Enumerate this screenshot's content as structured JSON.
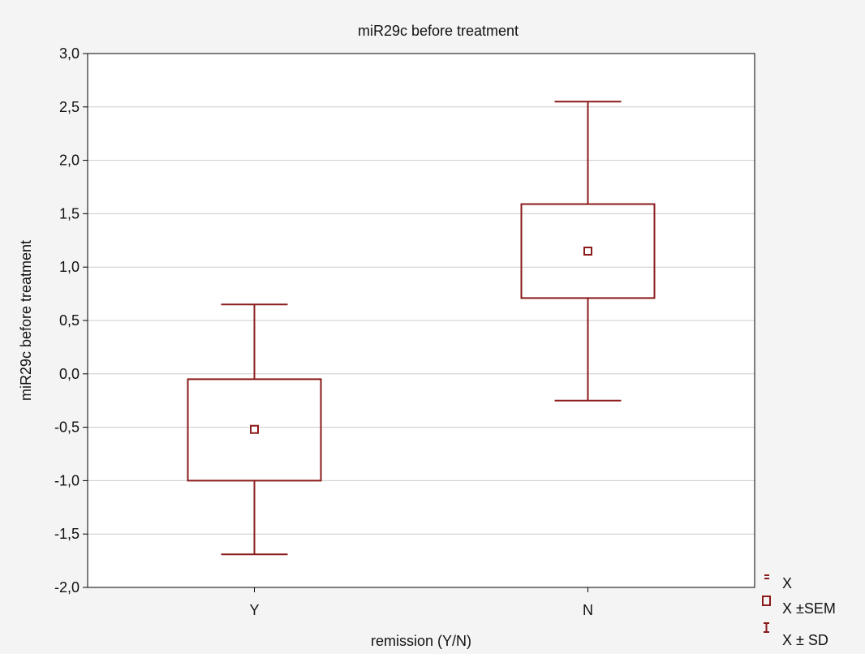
{
  "chart_data": {
    "type": "box",
    "title": "miR29c before treatment",
    "xlabel": "remission (Y/N)",
    "ylabel": "miR29c before treatment",
    "ylim": [
      -2.0,
      3.0
    ],
    "yticks": [
      -2.0,
      -1.5,
      -1.0,
      -0.5,
      0.0,
      0.5,
      1.0,
      1.5,
      2.0,
      2.5,
      3.0
    ],
    "ytick_labels": [
      "-2,0",
      "-1,5",
      "-1,0",
      "-0,5",
      "0,0",
      "0,5",
      "1,0",
      "1,5",
      "2,0",
      "2,5",
      "3,0"
    ],
    "grid": true,
    "categories": [
      "Y",
      "N"
    ],
    "groups": [
      {
        "category": "Y",
        "mean": -0.52,
        "sem_low": -1.0,
        "sem_high": -0.05,
        "sd_low": -1.69,
        "sd_high": 0.65
      },
      {
        "category": "N",
        "mean": 1.15,
        "sem_low": 0.71,
        "sem_high": 1.59,
        "sd_low": -0.25,
        "sd_high": 2.55
      }
    ],
    "legend": {
      "position": "bottom-right",
      "items": [
        {
          "symbol": "mean-marker",
          "label": "X"
        },
        {
          "symbol": "box",
          "label": "X ±SEM"
        },
        {
          "symbol": "whisker",
          "label": "X ± SD"
        }
      ]
    },
    "colors": {
      "series": "#8b1a1a",
      "grid": "#cccccc",
      "axis": "#000000",
      "background": "#f4f4f4",
      "plot_background": "#ffffff"
    }
  }
}
